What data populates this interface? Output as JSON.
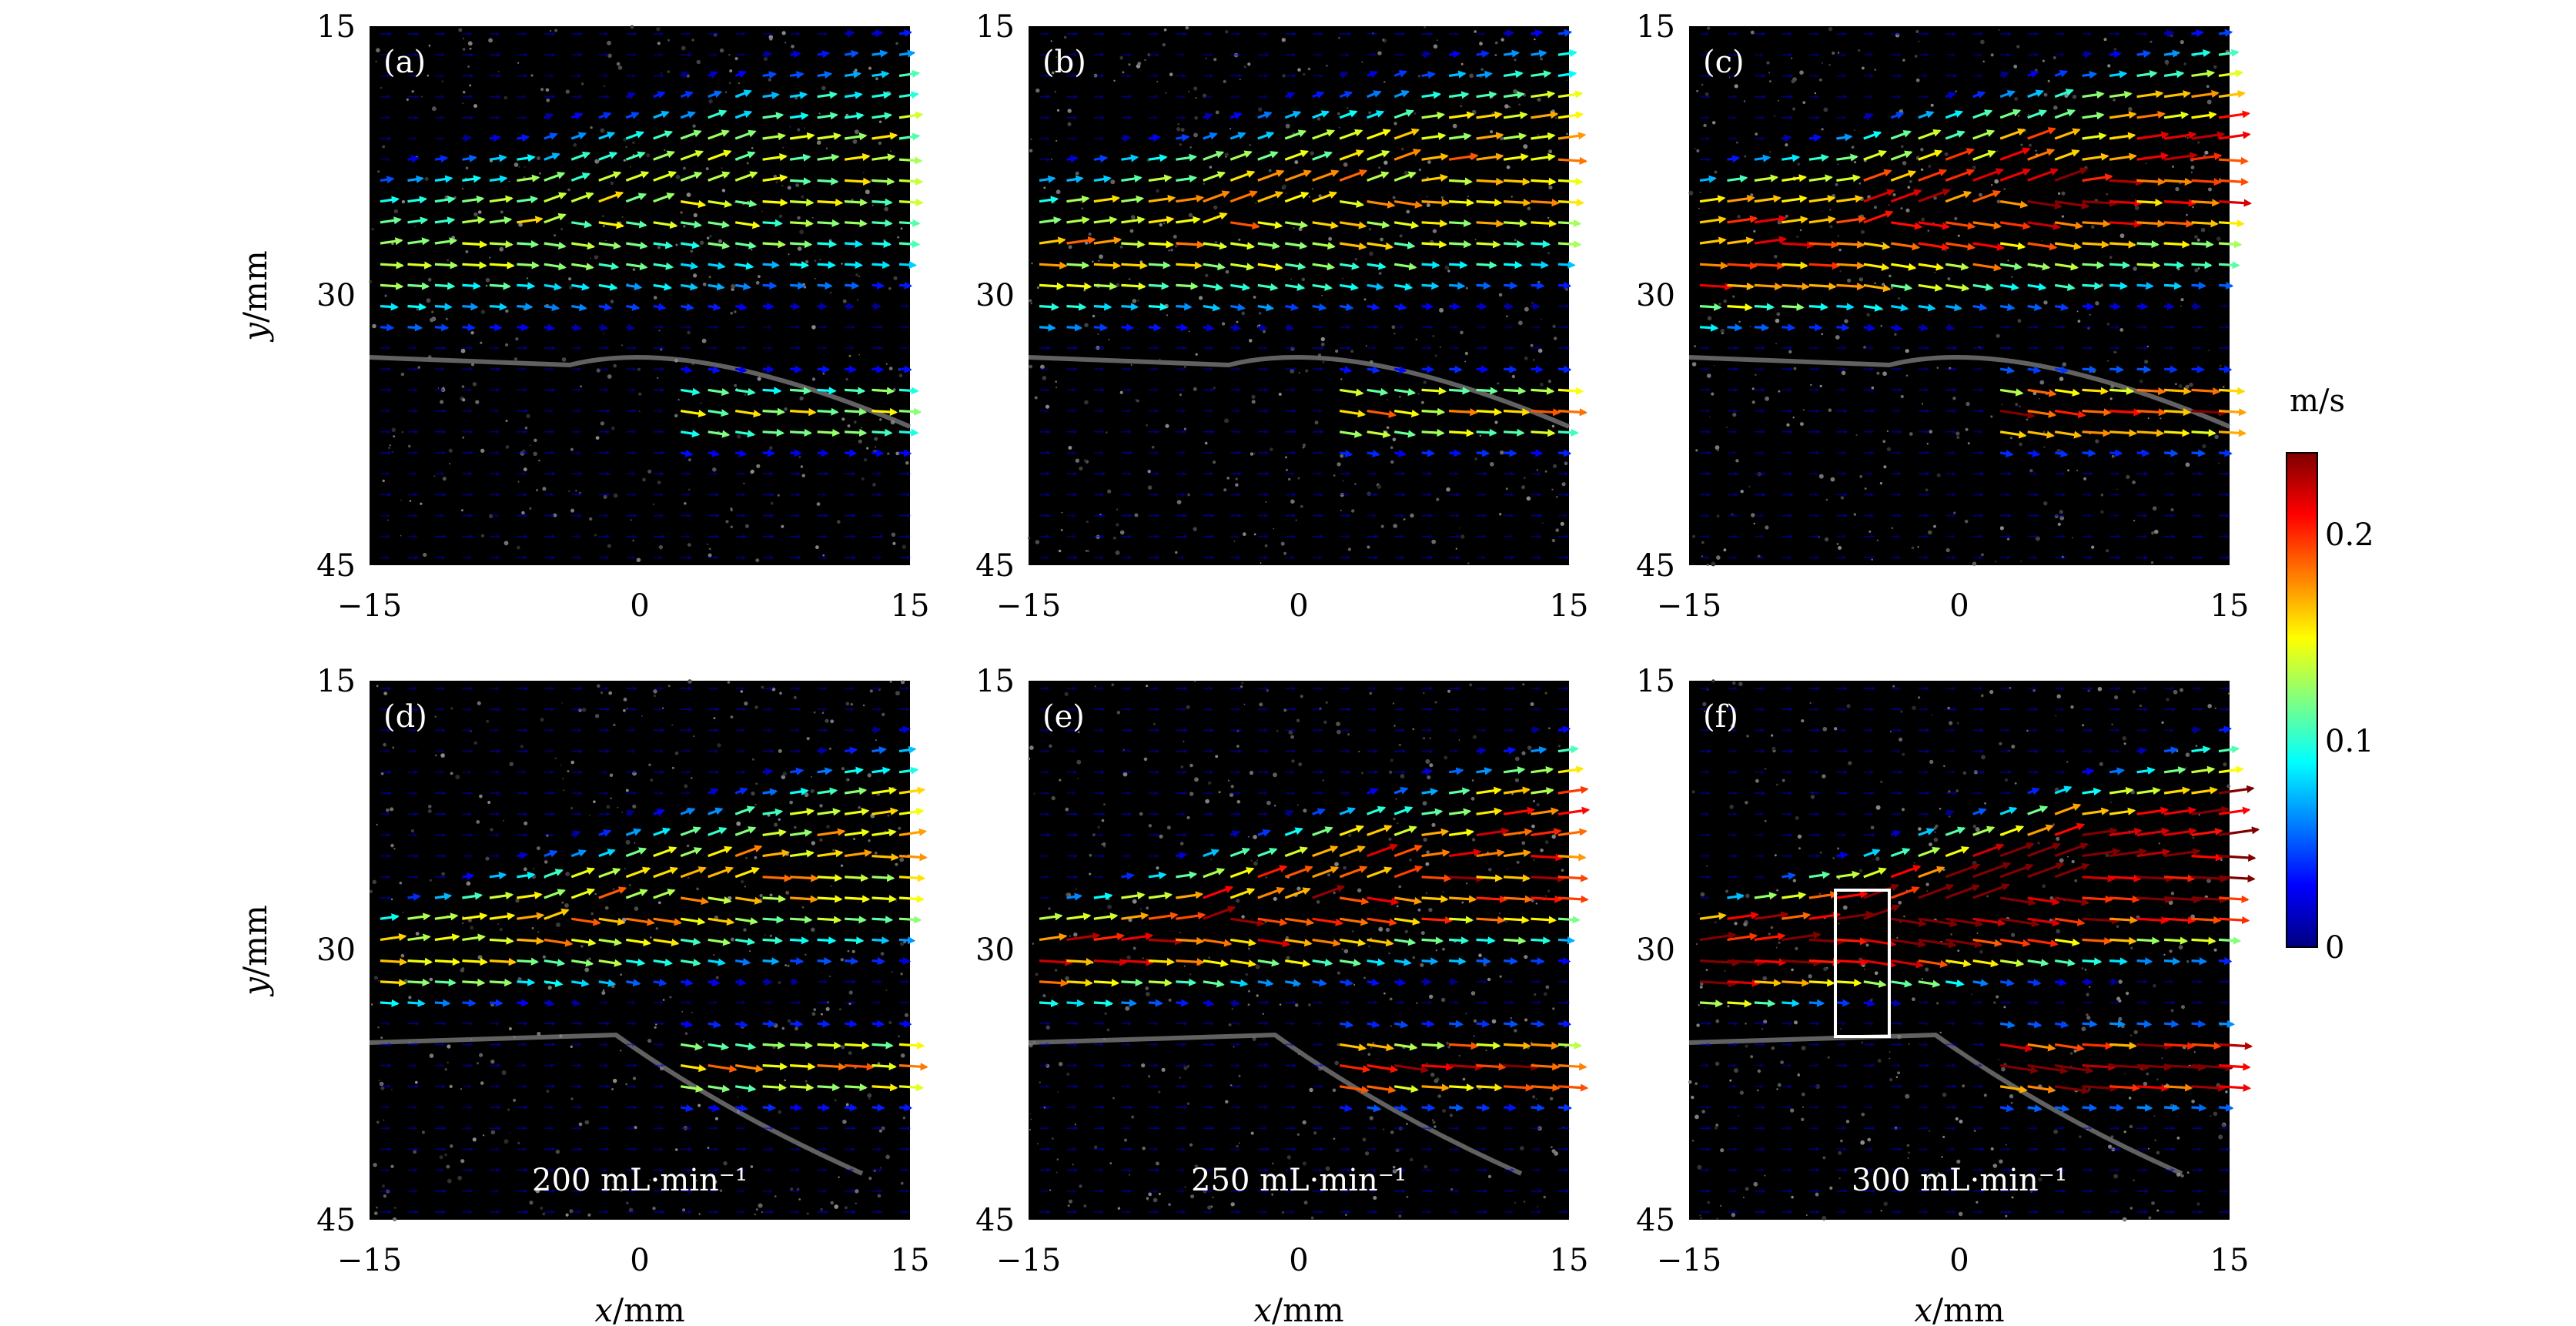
{
  "chart_data": [
    {
      "panel": "(a)",
      "type": "vector-field",
      "xlim": [
        -15,
        15
      ],
      "ylim": [
        45,
        15
      ],
      "xticks": [
        -15,
        0,
        15
      ],
      "yticks": [
        15,
        30,
        45
      ],
      "ylabel": "y/mm",
      "xlabel": "",
      "flow_label": "",
      "mean_speed": 0.1,
      "roi": false
    },
    {
      "panel": "(b)",
      "type": "vector-field",
      "xlim": [
        -15,
        15
      ],
      "ylim": [
        45,
        15
      ],
      "xticks": [
        -15,
        0,
        15
      ],
      "yticks": [
        15,
        30,
        45
      ],
      "ylabel": "",
      "xlabel": "",
      "flow_label": "",
      "mean_speed": 0.12,
      "roi": false
    },
    {
      "panel": "(c)",
      "type": "vector-field",
      "xlim": [
        -15,
        15
      ],
      "ylim": [
        45,
        15
      ],
      "xticks": [
        -15,
        0,
        15
      ],
      "yticks": [
        15,
        30,
        45
      ],
      "ylabel": "",
      "xlabel": "",
      "flow_label": "",
      "mean_speed": 0.15,
      "roi": false
    },
    {
      "panel": "(d)",
      "type": "vector-field",
      "xlim": [
        -15,
        15
      ],
      "ylim": [
        45,
        15
      ],
      "xticks": [
        -15,
        0,
        15
      ],
      "yticks": [
        15,
        30,
        45
      ],
      "ylabel": "y/mm",
      "xlabel": "x/mm",
      "flow_label": "200 mL·min⁻¹",
      "mean_speed": 0.12,
      "roi": false
    },
    {
      "panel": "(e)",
      "type": "vector-field",
      "xlim": [
        -15,
        15
      ],
      "ylim": [
        45,
        15
      ],
      "xticks": [
        -15,
        0,
        15
      ],
      "yticks": [
        15,
        30,
        45
      ],
      "ylabel": "",
      "xlabel": "x/mm",
      "flow_label": "250 mL·min⁻¹",
      "mean_speed": 0.15,
      "roi": false
    },
    {
      "panel": "(f)",
      "type": "vector-field",
      "xlim": [
        -15,
        15
      ],
      "ylim": [
        45,
        15
      ],
      "xticks": [
        -15,
        0,
        15
      ],
      "yticks": [
        15,
        30,
        45
      ],
      "ylabel": "",
      "xlabel": "x/mm",
      "flow_label": "300 mL·min⁻¹",
      "mean_speed": 0.19,
      "roi": true,
      "roi_x": [
        -7,
        -4
      ],
      "roi_y": [
        27,
        35
      ]
    }
  ],
  "colorbar": {
    "title": "m/s",
    "min": 0,
    "max": 0.24,
    "ticks": [
      0,
      0.1,
      0.2
    ],
    "tick_labels": [
      "0",
      "0.1",
      "0.2"
    ],
    "colormap": "jet"
  },
  "colors": {
    "jet": [
      "#00007f",
      "#0000ff",
      "#0080ff",
      "#00ffff",
      "#80ff80",
      "#ffff00",
      "#ff8000",
      "#ff0000",
      "#7f0000"
    ],
    "background": "#000000"
  }
}
